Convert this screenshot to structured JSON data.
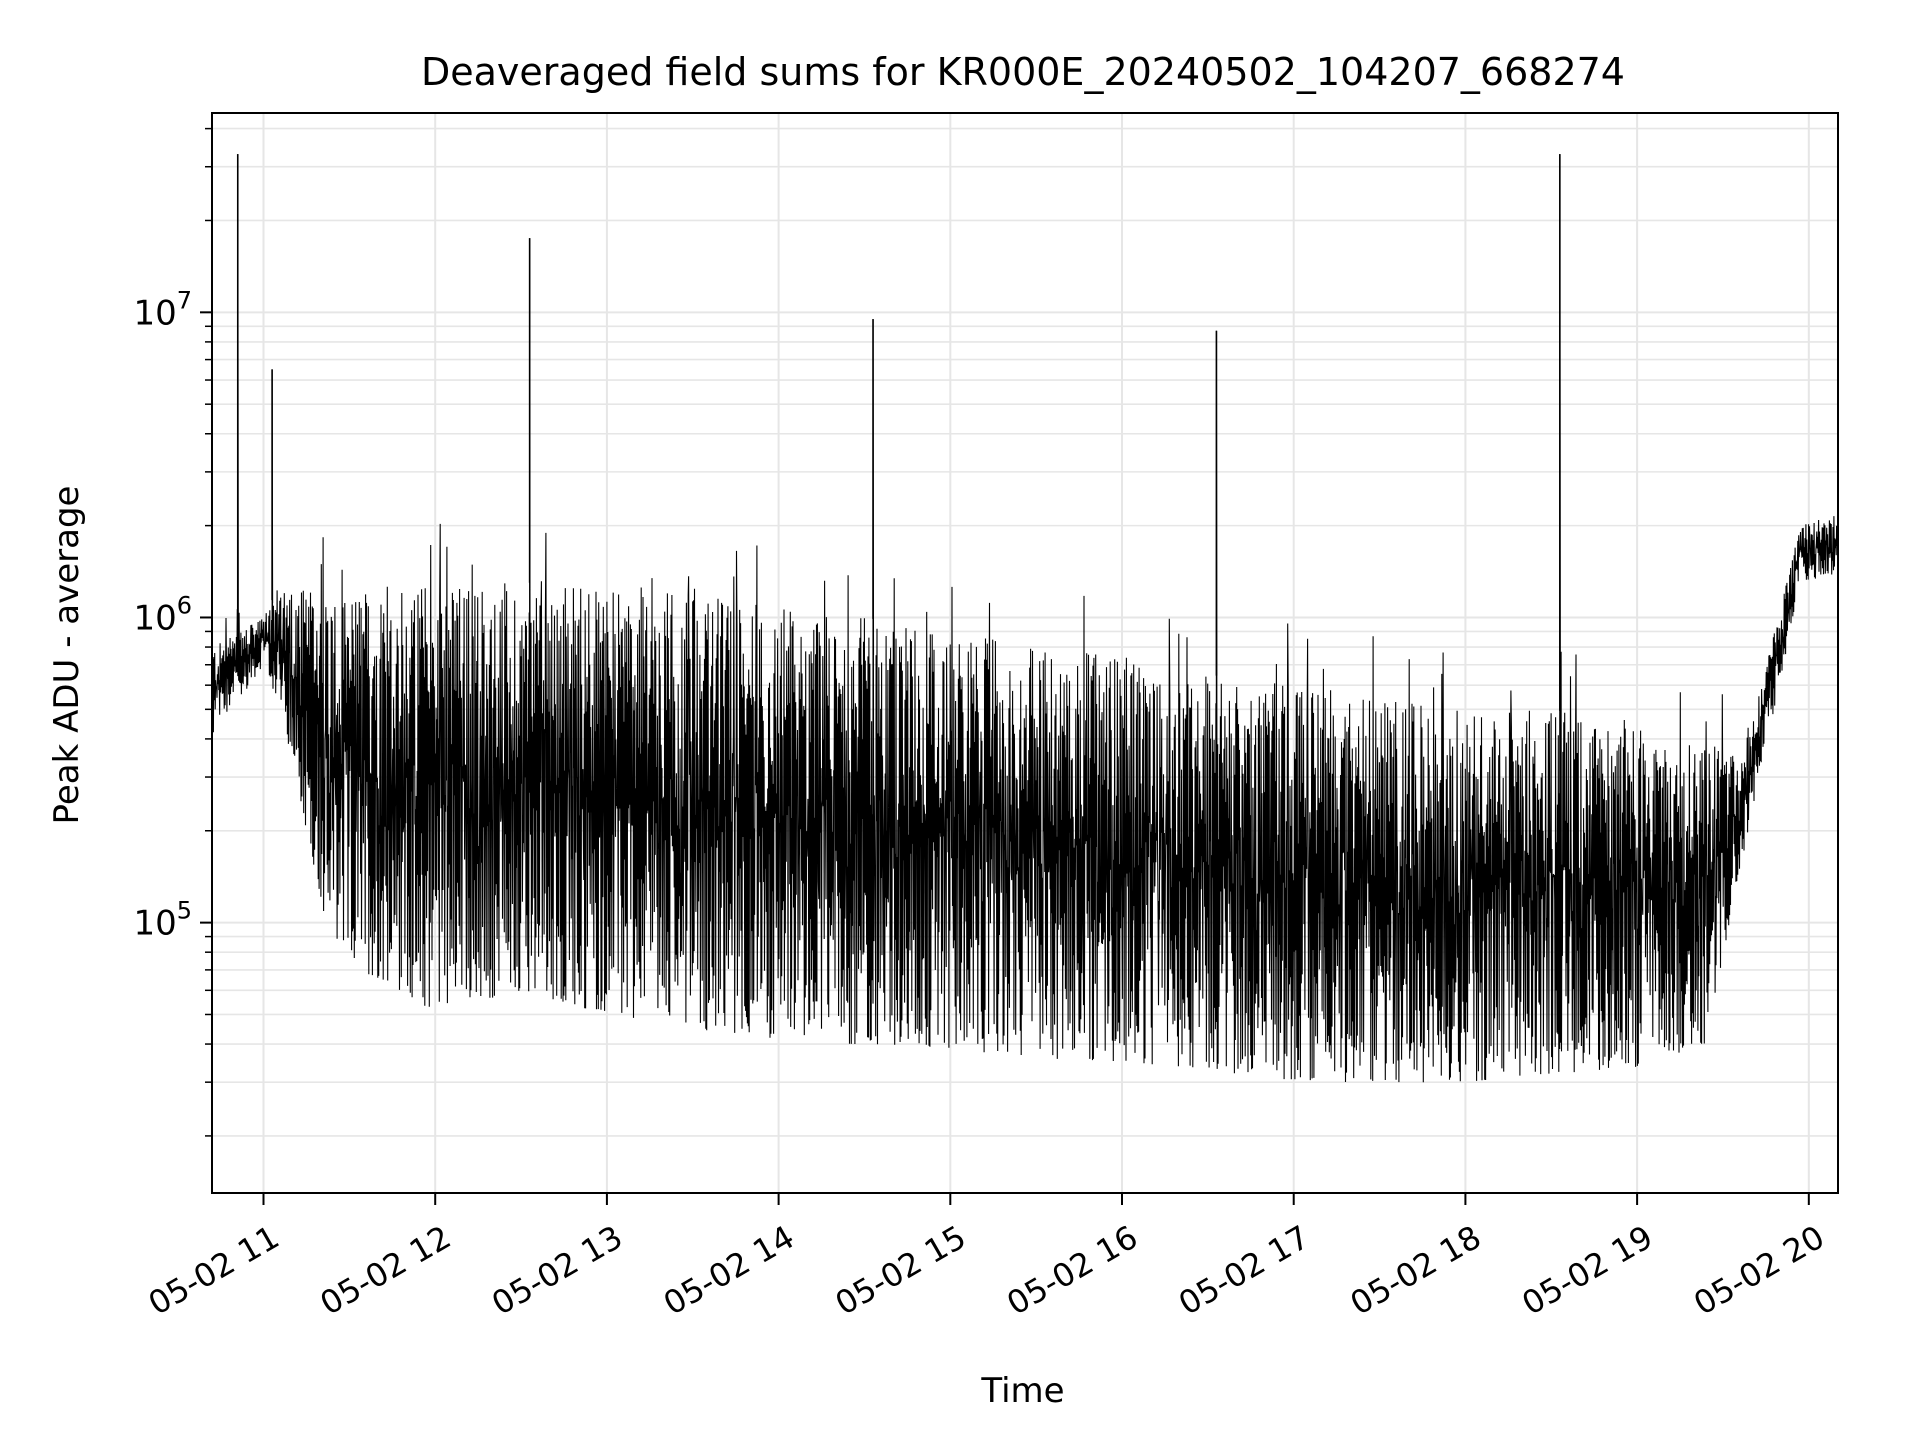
{
  "chart_data": {
    "type": "line",
    "title": "Deaveraged field sums for KR000E_20240502_104207_668274",
    "xlabel": "Time",
    "ylabel": "Peak ADU - average",
    "yscale": "log",
    "ylim": [
      13000,
      45000000
    ],
    "xlim_hours": [
      10.7,
      20.17
    ],
    "grid": true,
    "line_color": "#000000",
    "grid_color": "#e6e6e6",
    "x_ticks": [
      {
        "hour": 11,
        "label": "05-02 11"
      },
      {
        "hour": 12,
        "label": "05-02 12"
      },
      {
        "hour": 13,
        "label": "05-02 13"
      },
      {
        "hour": 14,
        "label": "05-02 14"
      },
      {
        "hour": 15,
        "label": "05-02 15"
      },
      {
        "hour": 16,
        "label": "05-02 16"
      },
      {
        "hour": 17,
        "label": "05-02 17"
      },
      {
        "hour": 18,
        "label": "05-02 18"
      },
      {
        "hour": 19,
        "label": "05-02 19"
      },
      {
        "hour": 20,
        "label": "05-02 20"
      }
    ],
    "y_ticks": [
      {
        "value": 100000,
        "base": "10",
        "exp": "5"
      },
      {
        "value": 1000000,
        "base": "10",
        "exp": "6"
      },
      {
        "value": 10000000,
        "base": "10",
        "exp": "7"
      }
    ],
    "series": [
      {
        "name": "deaveraged field sums",
        "envelope_hours": [
          10.7,
          11.0,
          11.1,
          11.4,
          12.0,
          12.5,
          13.0,
          13.5,
          14.0,
          14.5,
          15.0,
          15.5,
          16.0,
          16.5,
          17.0,
          17.5,
          18.0,
          18.5,
          19.0,
          19.4,
          19.6,
          19.8,
          19.95,
          20.17
        ],
        "envelope_upper": [
          800000,
          1000000,
          1300000,
          1200000,
          1300000,
          1300000,
          1300000,
          1200000,
          1100000,
          1000000,
          900000,
          800000,
          750000,
          650000,
          600000,
          550000,
          500000,
          500000,
          450000,
          400000,
          350000,
          900000,
          2000000,
          2200000
        ],
        "envelope_lower": [
          400000,
          700000,
          500000,
          80000,
          50000,
          60000,
          50000,
          45000,
          40000,
          40000,
          38000,
          36000,
          35000,
          33000,
          30000,
          30000,
          30000,
          32000,
          33000,
          40000,
          150000,
          500000,
          1300000,
          1400000
        ],
        "spikes": [
          {
            "hour": 10.85,
            "value": 33000000
          },
          {
            "hour": 11.05,
            "value": 6500000
          },
          {
            "hour": 12.55,
            "value": 17500000
          },
          {
            "hour": 14.55,
            "value": 9500000
          },
          {
            "hour": 16.55,
            "value": 8700000
          },
          {
            "hour": 18.55,
            "value": 33000000
          }
        ]
      }
    ]
  }
}
